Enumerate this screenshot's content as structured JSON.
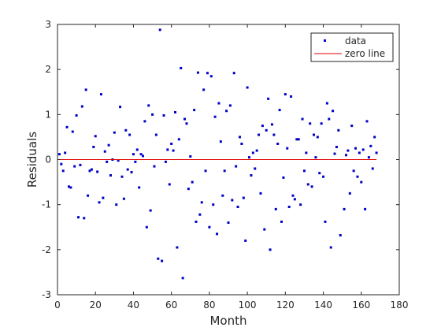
{
  "chart_data": {
    "type": "scatter",
    "title": "",
    "xlabel": "Month",
    "ylabel": "Residuals",
    "xlim": [
      0,
      180
    ],
    "ylim": [
      -3,
      3
    ],
    "xticks": [
      0,
      20,
      40,
      60,
      80,
      100,
      120,
      140,
      160,
      180
    ],
    "yticks": [
      -3,
      -2,
      -1,
      0,
      1,
      2,
      3
    ],
    "grid": false,
    "legend": {
      "position": "top-right"
    },
    "series": [
      {
        "name": "data",
        "kind": "markers",
        "color": "#0000c8",
        "x": [
          1,
          2,
          3,
          4,
          5,
          6,
          7,
          8,
          9,
          10,
          11,
          12,
          13,
          14,
          15,
          16,
          17,
          18,
          19,
          20,
          21,
          22,
          23,
          24,
          25,
          26,
          27,
          28,
          29,
          30,
          31,
          32,
          33,
          34,
          35,
          36,
          37,
          38,
          39,
          40,
          41,
          42,
          43,
          44,
          45,
          46,
          47,
          48,
          49,
          50,
          51,
          52,
          53,
          54,
          55,
          56,
          57,
          58,
          59,
          60,
          61,
          62,
          63,
          64,
          65,
          66,
          67,
          68,
          69,
          70,
          71,
          72,
          73,
          74,
          75,
          76,
          77,
          78,
          79,
          80,
          81,
          82,
          83,
          84,
          85,
          86,
          87,
          88,
          89,
          90,
          91,
          92,
          93,
          94,
          95,
          96,
          97,
          98,
          99,
          100,
          101,
          102,
          103,
          104,
          105,
          106,
          107,
          108,
          109,
          110,
          111,
          112,
          113,
          114,
          115,
          116,
          117,
          118,
          119,
          120,
          121,
          122,
          123,
          124,
          125,
          126,
          127,
          128,
          129,
          130,
          131,
          132,
          133,
          134,
          135,
          136,
          137,
          138,
          139,
          140,
          141,
          142,
          143,
          144,
          145,
          146,
          147,
          148,
          149,
          150,
          151,
          152,
          153,
          154,
          155,
          156,
          157,
          158,
          159,
          160,
          161,
          162,
          163,
          164,
          165,
          166,
          167,
          168
        ],
        "y": [
          0.12,
          -0.1,
          -0.25,
          0.15,
          0.72,
          -0.6,
          -0.62,
          0.62,
          -0.15,
          0.98,
          -1.28,
          -0.12,
          1.18,
          -1.3,
          1.55,
          -0.8,
          -0.25,
          -0.22,
          0.28,
          0.52,
          -0.27,
          -0.95,
          1.45,
          -0.85,
          0.18,
          -0.05,
          0.32,
          -0.35,
          0.0,
          0.6,
          -1.0,
          -0.02,
          1.17,
          -0.38,
          -0.87,
          0.65,
          -0.22,
          0.55,
          -0.28,
          0.12,
          -0.05,
          0.22,
          -0.62,
          0.12,
          0.08,
          0.85,
          -1.5,
          1.2,
          -1.13,
          1.0,
          -0.15,
          0.55,
          -2.2,
          2.88,
          -2.25,
          0.98,
          -0.05,
          0.22,
          -0.55,
          0.35,
          0.2,
          1.05,
          -1.95,
          0.45,
          2.03,
          -2.63,
          0.9,
          0.8,
          -0.65,
          0.07,
          -0.5,
          1.1,
          -1.38,
          1.93,
          -1.22,
          -0.95,
          1.55,
          -0.25,
          1.92,
          -1.5,
          1.85,
          -1.0,
          0.95,
          -1.65,
          1.25,
          0.4,
          -0.8,
          -0.25,
          1.08,
          -1.4,
          1.2,
          -0.9,
          1.92,
          -0.15,
          -1.05,
          0.5,
          0.35,
          -0.85,
          -1.8,
          1.6,
          0.05,
          -0.35,
          0.15,
          -0.2,
          0.2,
          0.55,
          -0.75,
          0.75,
          -1.55,
          0.65,
          1.35,
          -2.0,
          0.78,
          0.55,
          -1.1,
          0.35,
          1.1,
          -1.38,
          -0.4,
          1.45,
          0.25,
          -1.05,
          1.4,
          -0.8,
          -0.88,
          0.45,
          0.45,
          -1.0,
          0.9,
          -0.25,
          0.15,
          -0.55,
          0.8,
          -0.6,
          0.55,
          0.05,
          0.5,
          -0.3,
          0.8,
          -0.38,
          -1.38,
          1.25,
          0.9,
          -1.95,
          1.08,
          0.13,
          0.28,
          0.65,
          -1.68,
          2.2,
          -1.1,
          0.1,
          0.2,
          -0.75,
          0.75,
          -0.25,
          0.25,
          -0.38,
          0.15,
          -0.5,
          0.22,
          -1.1,
          0.85,
          0.05,
          0.3,
          -0.2,
          0.5,
          0.15
        ]
      },
      {
        "name": "zero line",
        "kind": "line",
        "color": "#e00000",
        "x": [
          1,
          168
        ],
        "y": [
          0,
          0
        ]
      }
    ]
  }
}
